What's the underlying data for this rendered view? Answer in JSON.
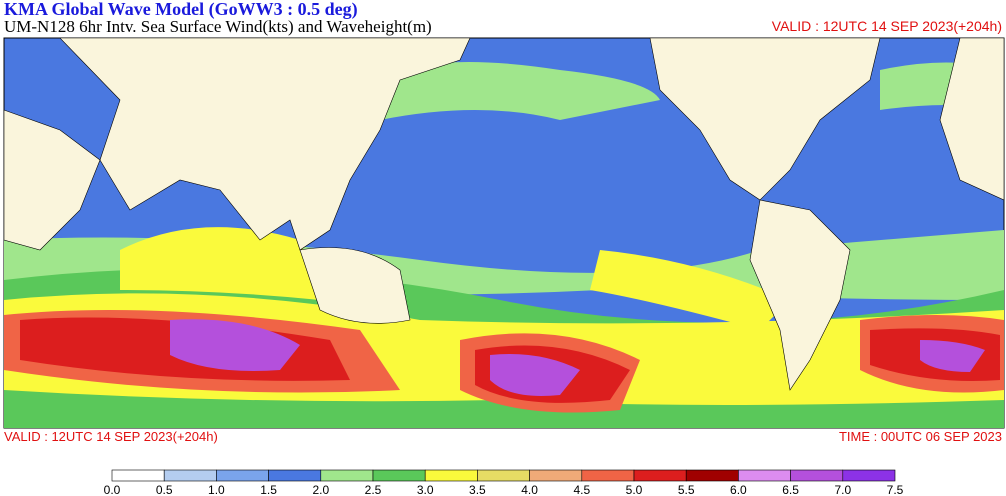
{
  "header": {
    "title": "KMA  Global Wave Model (GoWW3 : 0.5 deg)",
    "subtitle": "UM-N128  6hr Intv. Sea Surface Wind(kts) and Waveheight(m)",
    "valid_top": "VALID : 12UTC 14 SEP 2023(+204h)"
  },
  "footer": {
    "valid": "VALID : 12UTC 14 SEP 2023(+204h)",
    "time": "TIME : 00UTC 06 SEP 2023"
  },
  "colorbar": {
    "labels": [
      "0.0",
      "0.5",
      "1.0",
      "1.5",
      "2.0",
      "2.5",
      "3.0",
      "3.5",
      "4.0",
      "4.5",
      "5.0",
      "5.5",
      "6.0",
      "6.5",
      "7.0",
      "7.5"
    ],
    "colors": [
      "#ffffff",
      "#b4cdf0",
      "#7aa4ec",
      "#4a78e0",
      "#a0e68c",
      "#5ac85a",
      "#fafa3c",
      "#e6dc64",
      "#f0aa78",
      "#f06446",
      "#dc1e1e",
      "#a00000",
      "#dc8cf0",
      "#b450dc",
      "#8c32e6"
    ]
  }
}
